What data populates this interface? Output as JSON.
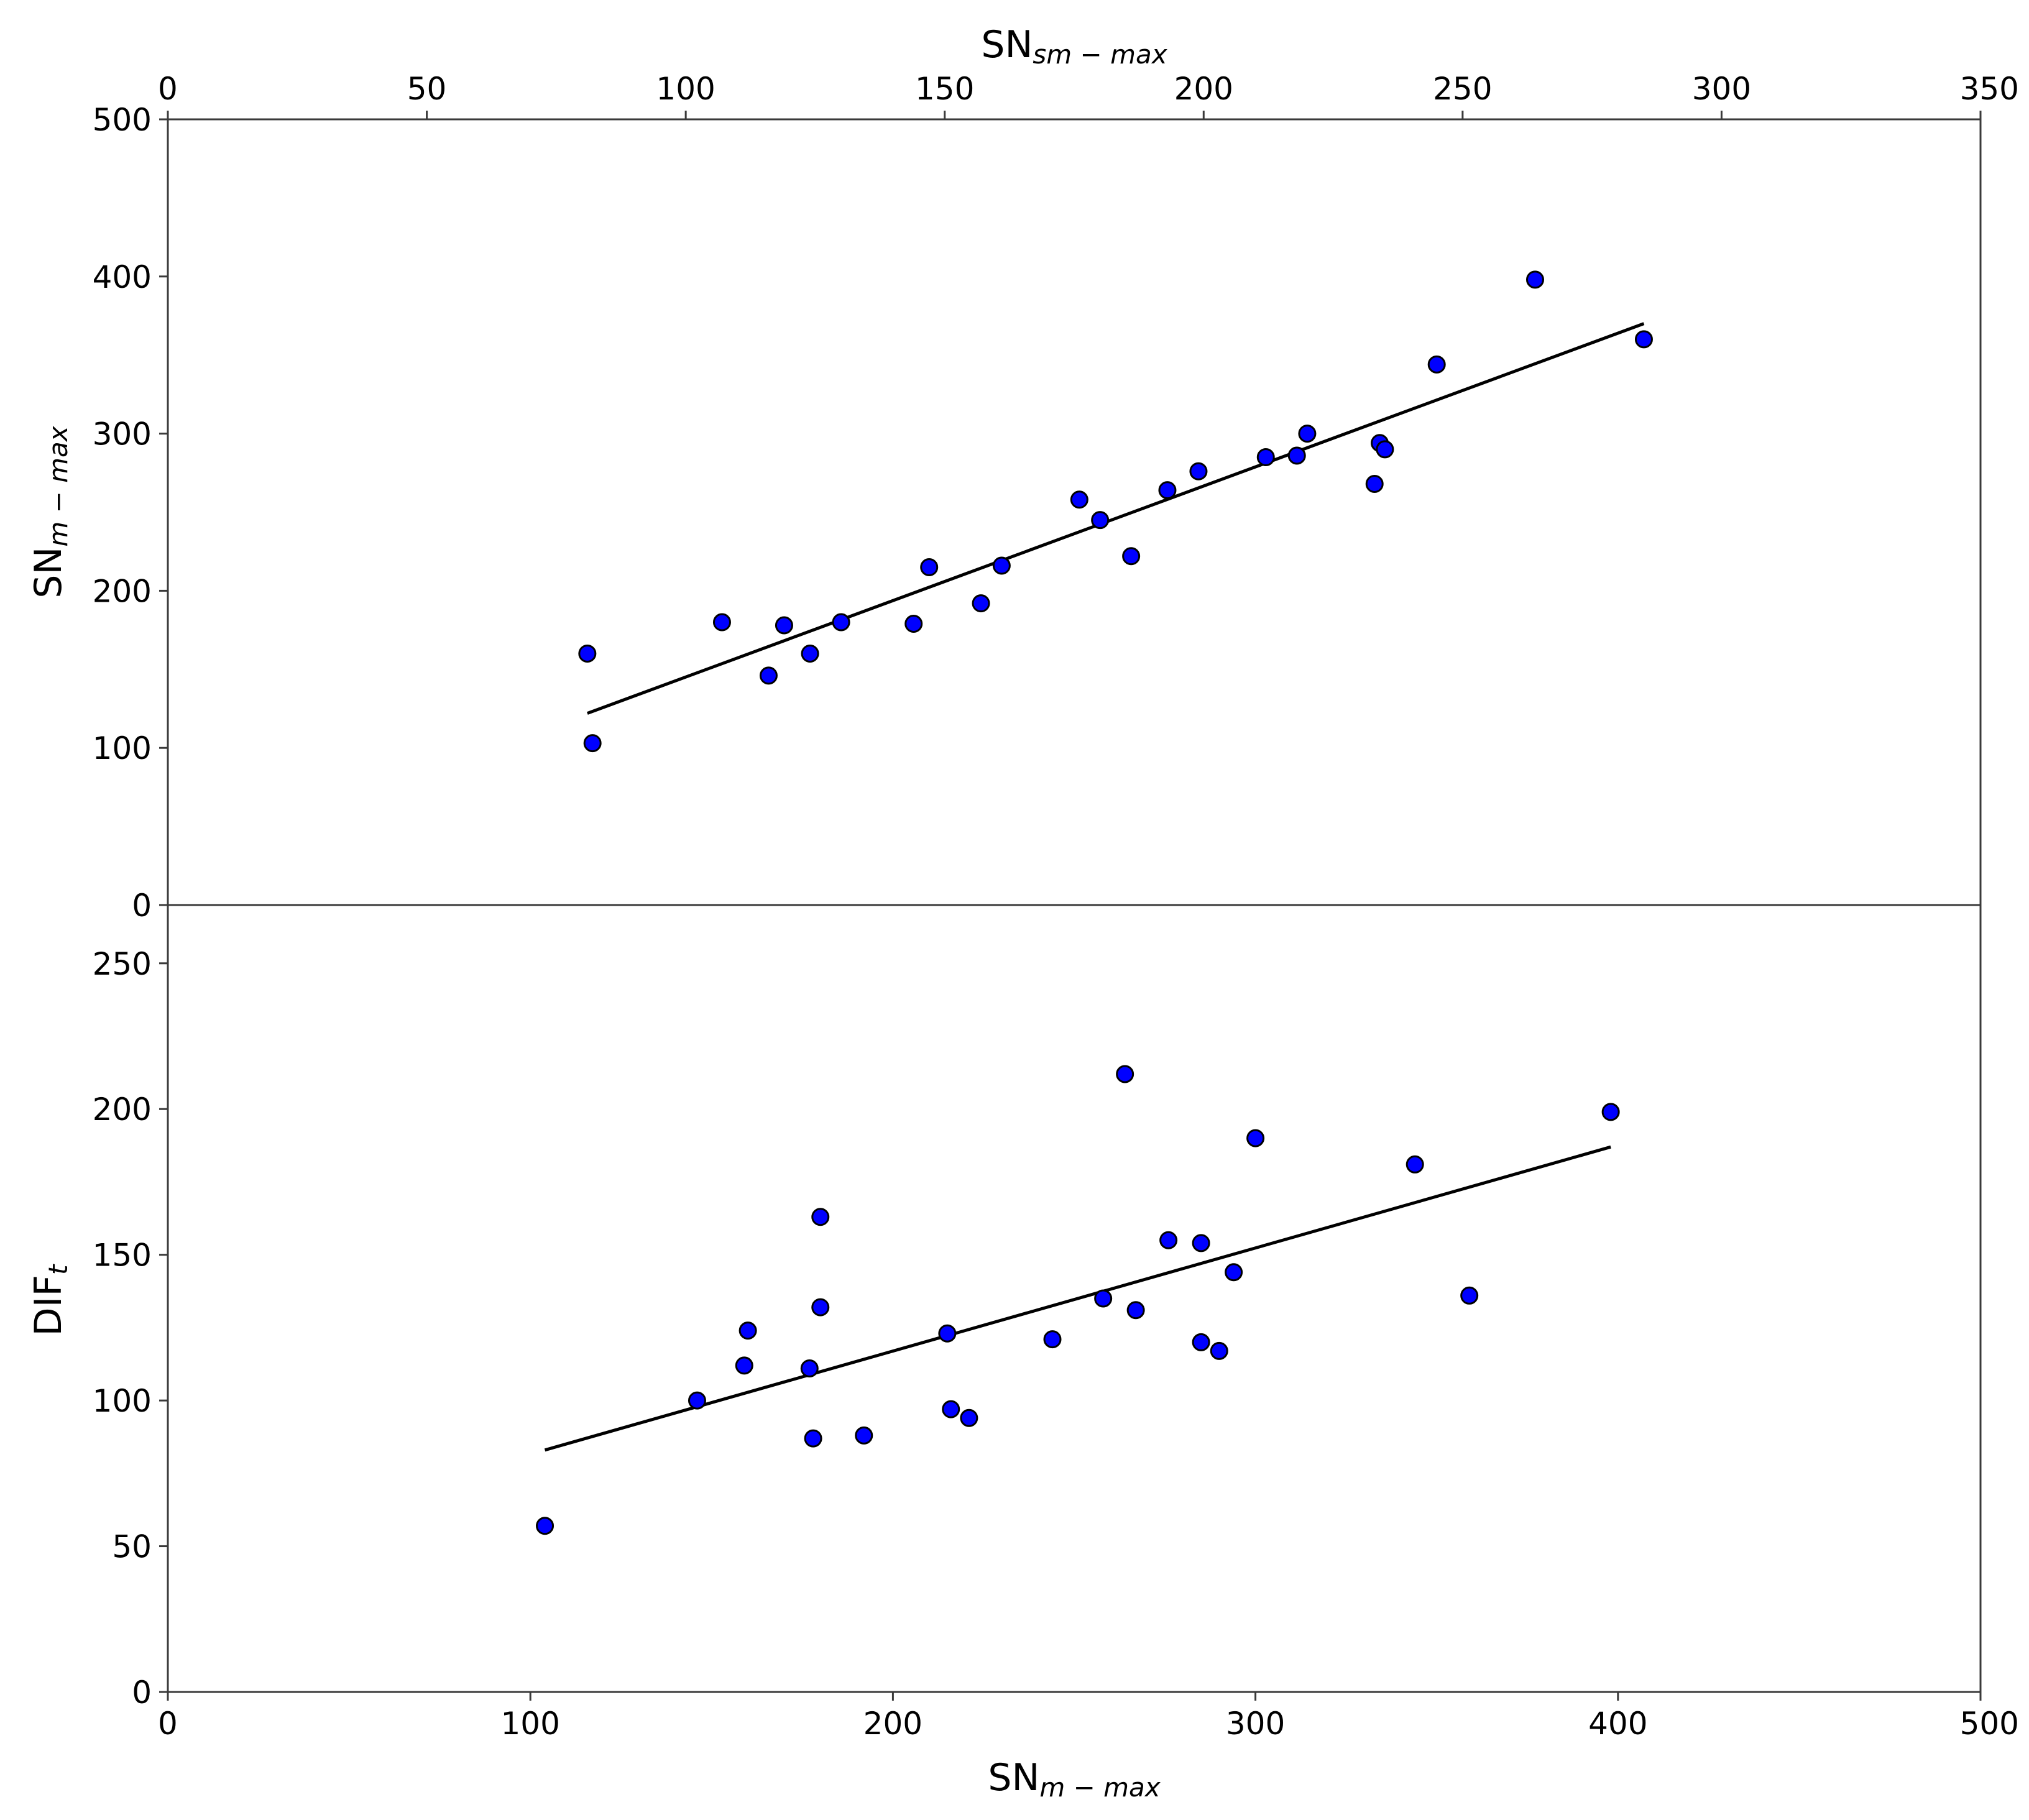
{
  "colors": {
    "marker_fill": "#0000ff",
    "marker_edge": "#000000",
    "fit_line": "#000000"
  },
  "chart_data": [
    {
      "type": "scatter",
      "panel": "top",
      "xlabel": {
        "base": "SN",
        "sub": "sm − max"
      },
      "ylabel": {
        "base": "SN",
        "sub": "m − max"
      },
      "x_axis_position": "top",
      "xlim": [
        0,
        350
      ],
      "ylim": [
        0,
        500
      ],
      "xticks": [
        "0",
        "50",
        "100",
        "150",
        "200",
        "250",
        "300",
        "350"
      ],
      "yticks": [
        "0",
        "100",
        "200",
        "300",
        "400",
        "500"
      ],
      "grid": false,
      "series": [
        {
          "x": [
            81,
            82,
            107,
            116,
            119,
            124,
            130,
            144,
            147,
            157,
            161,
            176,
            180,
            186,
            193,
            199,
            212,
            218,
            220,
            233,
            234,
            235,
            245,
            264,
            285
          ],
          "y": [
            160,
            103,
            180,
            146,
            178,
            160,
            180,
            179,
            215,
            192,
            216,
            258,
            245,
            222,
            264,
            276,
            285,
            286,
            300,
            268,
            294,
            290,
            344,
            398,
            360
          ]
        }
      ],
      "fit_line": {
        "x": [
          81,
          285
        ],
        "y": [
          122,
          370
        ]
      }
    },
    {
      "type": "scatter",
      "panel": "bottom",
      "xlabel": {
        "base": "SN",
        "sub": "m − max"
      },
      "ylabel": {
        "base": "DIF",
        "sub": "t"
      },
      "x_axis_position": "bottom",
      "xlim": [
        0,
        500
      ],
      "ylim": [
        0,
        270
      ],
      "xticks": [
        "0",
        "100",
        "200",
        "300",
        "400",
        "500"
      ],
      "yticks": [
        "0",
        "50",
        "100",
        "150",
        "200",
        "250"
      ],
      "grid": false,
      "series": [
        {
          "x": [
            104,
            146,
            159,
            160,
            177,
            178,
            180,
            180,
            192,
            215,
            216,
            221,
            244,
            258,
            264,
            267,
            276,
            285,
            285,
            290,
            294,
            300,
            344,
            359,
            398
          ],
          "y": [
            57,
            100,
            112,
            124,
            111,
            87,
            132,
            163,
            88,
            123,
            97,
            94,
            121,
            135,
            212,
            131,
            155,
            120,
            154,
            117,
            144,
            190,
            181,
            136,
            199
          ]
        }
      ],
      "fit_line": {
        "x": [
          104,
          398
        ],
        "y": [
          83,
          187
        ]
      }
    }
  ]
}
